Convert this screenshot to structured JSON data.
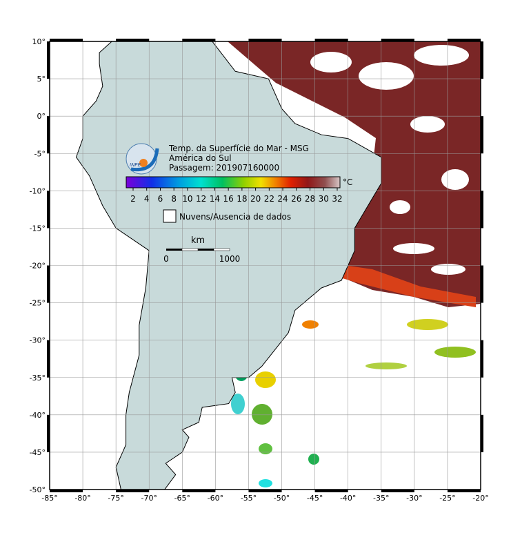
{
  "map": {
    "title": "Temp. da Superfície do Mar - MSG",
    "subtitle": "América do Sul",
    "pass": "Passagem: 201907160000",
    "logo": "INPE",
    "colorbar": {
      "unit": "°C",
      "ticks": [
        2,
        4,
        6,
        8,
        10,
        12,
        14,
        16,
        18,
        20,
        22,
        24,
        26,
        28,
        30,
        32
      ]
    },
    "legend": "Nuvens/Ausencia de dados",
    "scale": {
      "unit": "km",
      "start": 0,
      "end": 1000
    },
    "xticks": [
      {
        "value": -85,
        "label": "-85°"
      },
      {
        "value": -80,
        "label": "-80°"
      },
      {
        "value": -75,
        "label": "-75°"
      },
      {
        "value": -70,
        "label": "-70°"
      },
      {
        "value": -65,
        "label": "-65°"
      },
      {
        "value": -60,
        "label": "-60°"
      },
      {
        "value": -55,
        "label": "-55°"
      },
      {
        "value": -50,
        "label": "-50°"
      },
      {
        "value": -45,
        "label": "-45°"
      },
      {
        "value": -40,
        "label": "-40°"
      },
      {
        "value": -35,
        "label": "-35°"
      },
      {
        "value": -30,
        "label": "-30°"
      },
      {
        "value": -25,
        "label": "-25°"
      },
      {
        "value": -20,
        "label": "-20°"
      }
    ],
    "yticks": [
      {
        "value": 10,
        "label": "10°"
      },
      {
        "value": 5,
        "label": "5°"
      },
      {
        "value": 0,
        "label": "0°"
      },
      {
        "value": -5,
        "label": "-5°"
      },
      {
        "value": -10,
        "label": "-10°"
      },
      {
        "value": -15,
        "label": "-15°"
      },
      {
        "value": -20,
        "label": "-20°"
      },
      {
        "value": -25,
        "label": "-25°"
      },
      {
        "value": -30,
        "label": "-30°"
      },
      {
        "value": -35,
        "label": "-35°"
      },
      {
        "value": -40,
        "label": "-40°"
      },
      {
        "value": -45,
        "label": "-45°"
      },
      {
        "value": -50,
        "label": "-50°"
      }
    ]
  }
}
